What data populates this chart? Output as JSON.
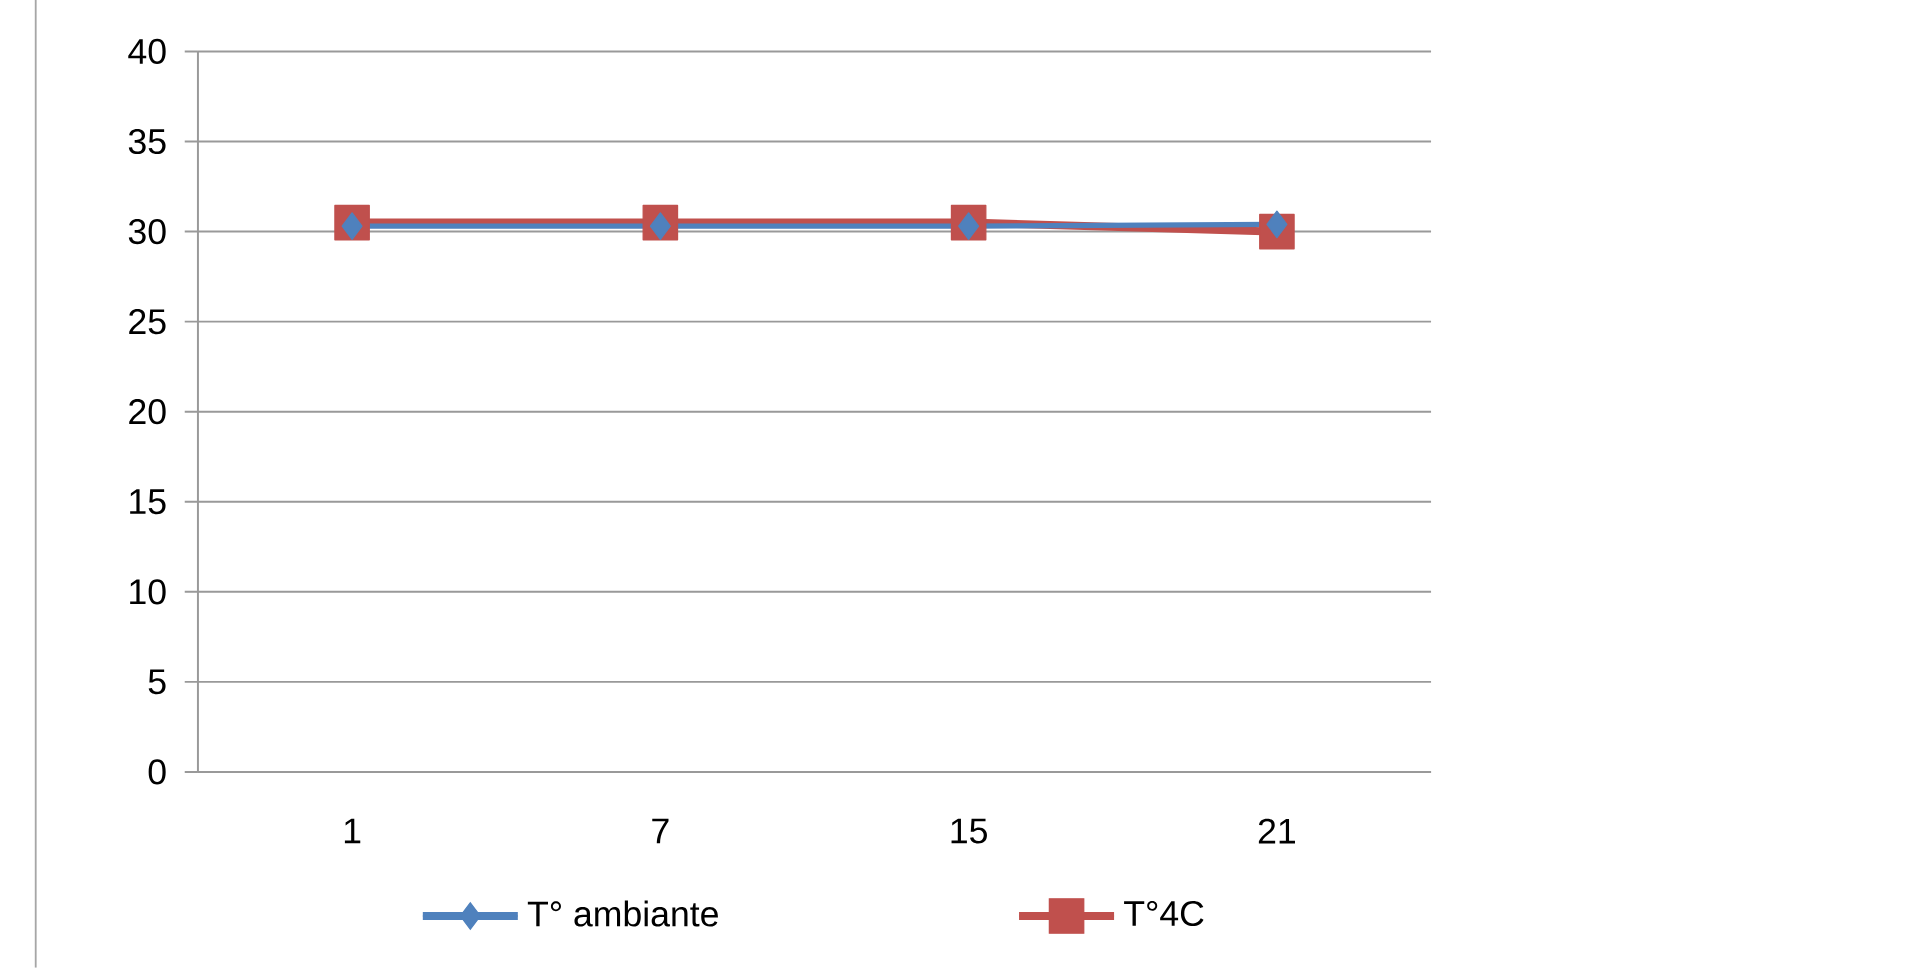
{
  "chart_data": {
    "type": "line",
    "categories": [
      "1",
      "7",
      "15",
      "21"
    ],
    "series": [
      {
        "name": "T° ambiante",
        "color": "#4f81bd",
        "marker": "diamond",
        "values": [
          30.3,
          30.3,
          30.3,
          30.4
        ]
      },
      {
        "name": "T°4C",
        "color": "#c0504d",
        "marker": "square",
        "values": [
          30.5,
          30.5,
          30.5,
          30.0
        ]
      }
    ],
    "ylim": [
      0,
      40
    ],
    "yticks": [
      0,
      5,
      10,
      15,
      20,
      25,
      30,
      35,
      40
    ],
    "grid": "y",
    "legend": "bottom"
  }
}
